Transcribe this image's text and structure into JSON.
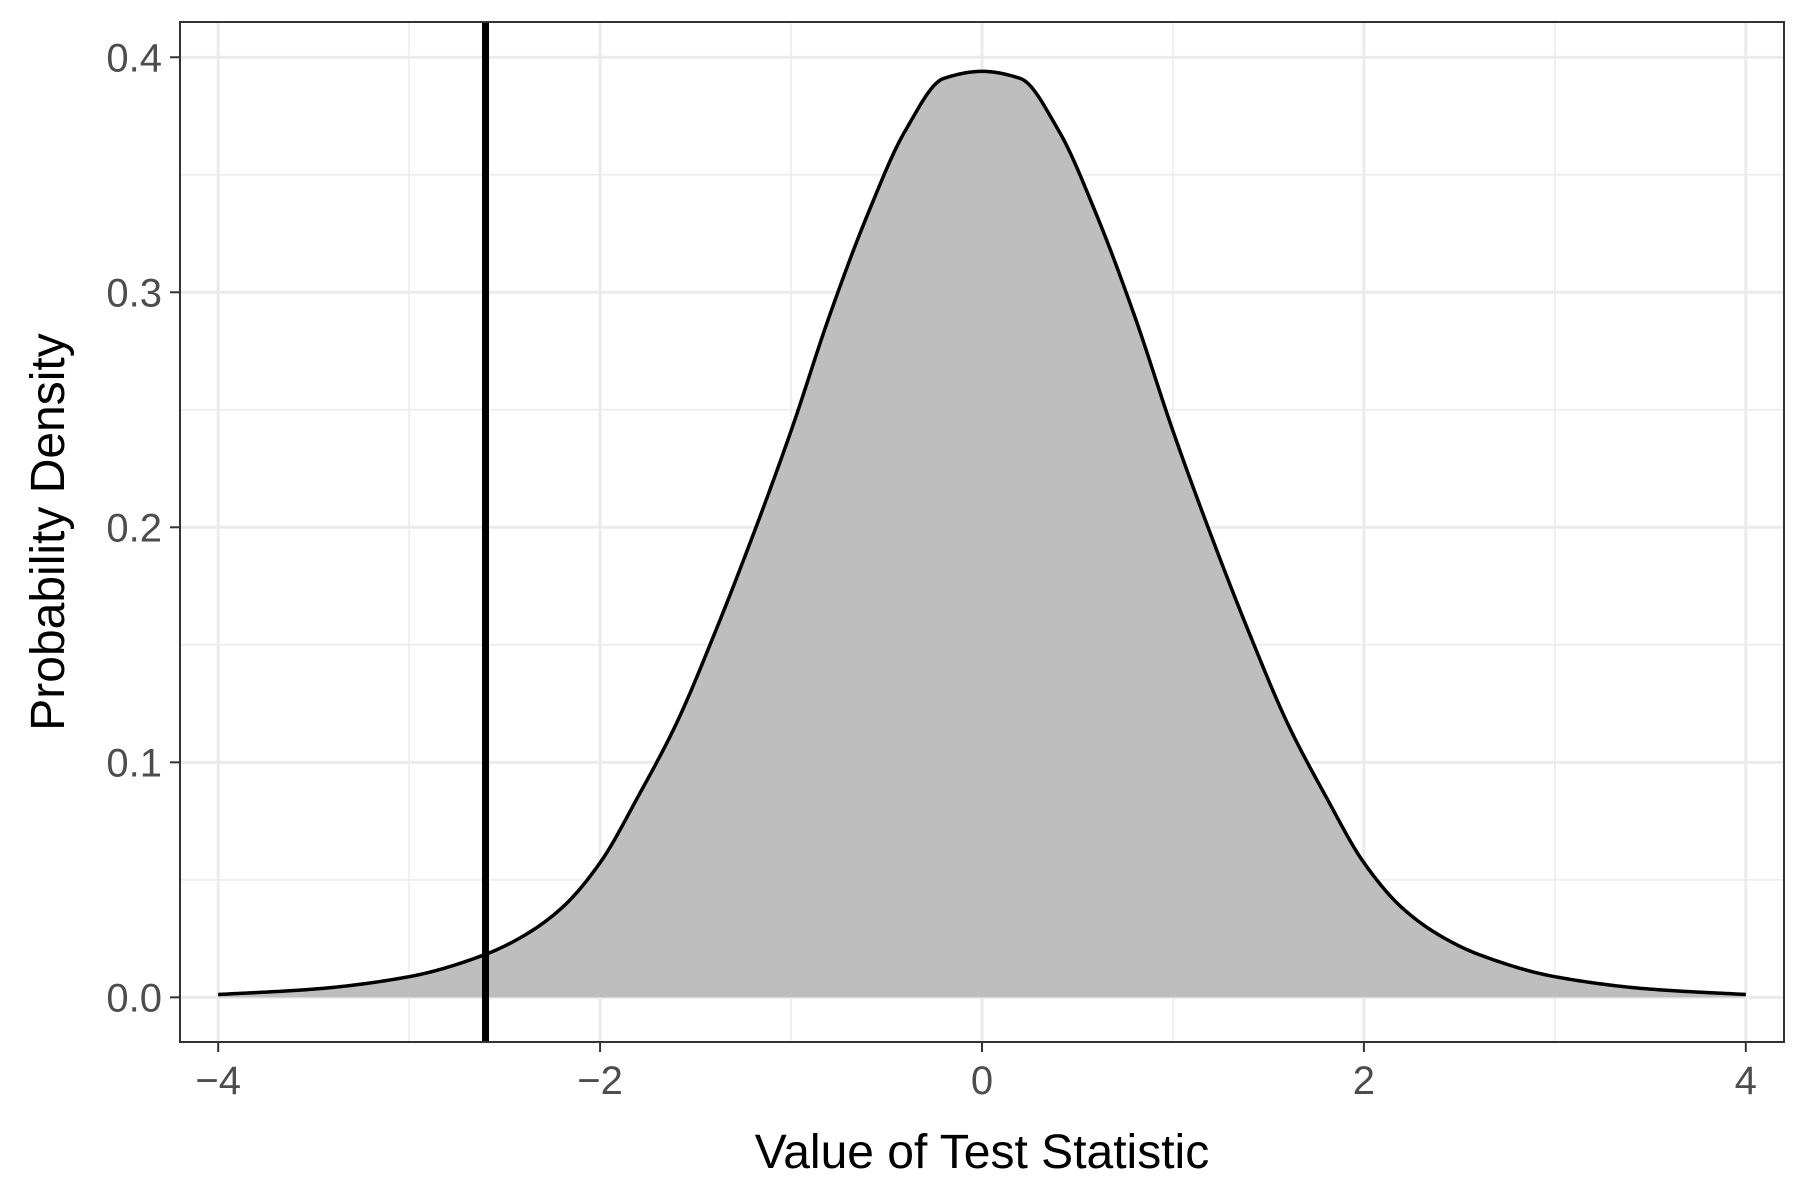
{
  "chart_data": {
    "type": "area",
    "title": "",
    "xlabel": "Value of Test Statistic",
    "ylabel": "Probability Density",
    "xlim": [
      -4.2,
      4.2
    ],
    "ylim": [
      -0.019,
      0.415
    ],
    "x_ticks": [
      -4,
      -2,
      0,
      2,
      4
    ],
    "x_tick_labels": [
      "−4",
      "−2",
      "0",
      "2",
      "4"
    ],
    "y_ticks": [
      0.0,
      0.1,
      0.2,
      0.3,
      0.4
    ],
    "y_tick_labels": [
      "0.0",
      "0.1",
      "0.2",
      "0.3",
      "0.4"
    ],
    "grid": true,
    "series": [
      {
        "x": [
          -4.0,
          -3.5,
          -3.0,
          -2.6,
          -2.4,
          -2.2,
          -2.0,
          -1.8,
          -1.6,
          -1.4,
          -1.2,
          -1.0,
          -0.8,
          -0.6,
          -0.4,
          -0.2,
          0.0,
          0.2,
          0.4,
          0.6,
          0.8,
          1.0,
          1.2,
          1.4,
          1.6,
          1.8,
          2.0,
          2.2,
          2.4,
          2.6,
          3.0,
          3.5,
          4.0
        ],
        "y": [
          0.0012,
          0.0035,
          0.0088,
          0.0183,
          0.0262,
          0.0381,
          0.0573,
          0.0856,
          0.1166,
          0.1549,
          0.1965,
          0.241,
          0.2897,
          0.3329,
          0.369,
          0.391,
          0.394,
          0.391,
          0.369,
          0.3329,
          0.2897,
          0.241,
          0.1965,
          0.1549,
          0.1166,
          0.0856,
          0.0573,
          0.0381,
          0.0262,
          0.0183,
          0.0088,
          0.0035,
          0.0012
        ],
        "fill": "#bebebe",
        "line_color": "#000000"
      }
    ],
    "vline": {
      "x": -2.6,
      "color": "#000000"
    }
  }
}
